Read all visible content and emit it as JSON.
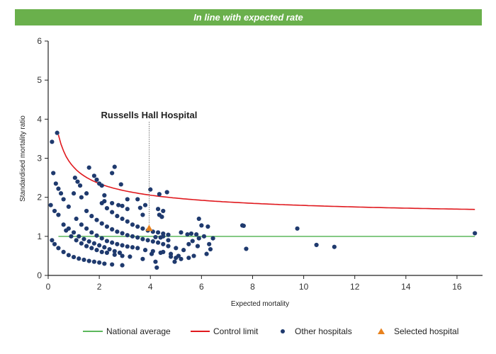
{
  "banner": {
    "text": "In line with expected rate"
  },
  "colors": {
    "banner": "#6ab04c",
    "national_average": "#5cb85c",
    "control_limit": "#e0191e",
    "other_hospitals": "#1f3a6e",
    "selected_hospital": "#e8821e"
  },
  "chart_data": {
    "type": "scatter",
    "xlabel": "Expected mortality",
    "ylabel": "Standardised mortality ratio",
    "xlim": [
      0,
      17
    ],
    "ylim": [
      0,
      6
    ],
    "xticks": [
      0,
      2,
      4,
      6,
      8,
      10,
      12,
      14,
      16
    ],
    "yticks": [
      0,
      1,
      2,
      3,
      4,
      5,
      6
    ],
    "grid": false,
    "legend_position": "bottom",
    "annotation": {
      "text": "Russells Hall Hospital",
      "x": 3.95,
      "y": 1.2
    },
    "national_average": {
      "name": "National average",
      "y": 1
    },
    "control_limit": {
      "name": "Control limit",
      "x_start": 0.4,
      "x_end": 16.7,
      "y_at_x1": 2.77,
      "y_limit": 1.34
    },
    "other_hospitals": {
      "name": "Other hospitals",
      "points": [
        [
          0.15,
          3.42
        ],
        [
          0.35,
          3.65
        ],
        [
          0.2,
          2.62
        ],
        [
          0.3,
          2.35
        ],
        [
          0.4,
          2.22
        ],
        [
          0.5,
          2.1
        ],
        [
          0.6,
          1.95
        ],
        [
          0.8,
          1.76
        ],
        [
          1.05,
          2.5
        ],
        [
          1.15,
          2.4
        ],
        [
          1.25,
          2.3
        ],
        [
          1.0,
          2.1
        ],
        [
          1.3,
          2.0
        ],
        [
          1.5,
          2.1
        ],
        [
          1.6,
          2.76
        ],
        [
          1.8,
          2.55
        ],
        [
          2.6,
          2.78
        ],
        [
          2.5,
          2.62
        ],
        [
          1.9,
          2.45
        ],
        [
          2.0,
          2.35
        ],
        [
          2.1,
          2.3
        ],
        [
          2.2,
          2.05
        ],
        [
          2.2,
          1.9
        ],
        [
          2.85,
          2.33
        ],
        [
          2.5,
          1.85
        ],
        [
          2.75,
          1.8
        ],
        [
          2.9,
          1.78
        ],
        [
          3.1,
          1.7
        ],
        [
          3.1,
          1.95
        ],
        [
          3.5,
          1.95
        ],
        [
          3.6,
          1.73
        ],
        [
          3.7,
          1.55
        ],
        [
          3.8,
          1.8
        ],
        [
          4.0,
          2.2
        ],
        [
          4.35,
          2.08
        ],
        [
          4.65,
          2.13
        ],
        [
          4.3,
          1.7
        ],
        [
          4.45,
          1.5
        ],
        [
          4.5,
          1.65
        ],
        [
          4.35,
          1.55
        ],
        [
          0.1,
          1.8
        ],
        [
          0.25,
          1.65
        ],
        [
          0.4,
          1.55
        ],
        [
          0.15,
          0.9
        ],
        [
          0.25,
          0.8
        ],
        [
          0.4,
          0.7
        ],
        [
          0.6,
          0.6
        ],
        [
          0.8,
          0.52
        ],
        [
          1.0,
          0.47
        ],
        [
          1.2,
          0.43
        ],
        [
          1.4,
          0.4
        ],
        [
          1.6,
          0.37
        ],
        [
          1.8,
          0.35
        ],
        [
          2.0,
          0.33
        ],
        [
          2.2,
          0.3
        ],
        [
          2.5,
          0.28
        ],
        [
          2.9,
          0.26
        ],
        [
          0.7,
          1.15
        ],
        [
          0.9,
          1.0
        ],
        [
          1.1,
          0.9
        ],
        [
          1.3,
          0.82
        ],
        [
          1.5,
          0.75
        ],
        [
          1.7,
          0.7
        ],
        [
          1.9,
          0.65
        ],
        [
          2.1,
          0.6
        ],
        [
          2.3,
          0.58
        ],
        [
          2.6,
          0.53
        ],
        [
          2.9,
          0.5
        ],
        [
          3.2,
          0.48
        ],
        [
          1.1,
          1.45
        ],
        [
          1.3,
          1.3
        ],
        [
          1.5,
          1.2
        ],
        [
          1.7,
          1.1
        ],
        [
          1.9,
          1.02
        ],
        [
          2.1,
          0.95
        ],
        [
          2.3,
          0.88
        ],
        [
          2.5,
          0.84
        ],
        [
          2.7,
          0.8
        ],
        [
          2.9,
          0.77
        ],
        [
          3.1,
          0.74
        ],
        [
          3.3,
          0.72
        ],
        [
          3.5,
          0.7
        ],
        [
          3.8,
          0.65
        ],
        [
          4.1,
          0.62
        ],
        [
          4.4,
          0.58
        ],
        [
          4.8,
          0.55
        ],
        [
          5.1,
          0.5
        ],
        [
          1.5,
          1.65
        ],
        [
          1.7,
          1.52
        ],
        [
          1.9,
          1.42
        ],
        [
          2.1,
          1.33
        ],
        [
          2.3,
          1.25
        ],
        [
          2.5,
          1.18
        ],
        [
          2.7,
          1.12
        ],
        [
          2.9,
          1.08
        ],
        [
          3.1,
          1.03
        ],
        [
          3.3,
          1.0
        ],
        [
          3.5,
          0.97
        ],
        [
          3.7,
          0.93
        ],
        [
          3.9,
          0.9
        ],
        [
          4.1,
          0.87
        ],
        [
          4.3,
          0.84
        ],
        [
          4.5,
          0.8
        ],
        [
          4.7,
          0.75
        ],
        [
          2.1,
          1.85
        ],
        [
          2.3,
          1.72
        ],
        [
          2.5,
          1.62
        ],
        [
          2.7,
          1.52
        ],
        [
          2.9,
          1.45
        ],
        [
          3.1,
          1.38
        ],
        [
          3.3,
          1.3
        ],
        [
          3.5,
          1.25
        ],
        [
          3.7,
          1.2
        ],
        [
          3.9,
          1.15
        ],
        [
          4.1,
          1.12
        ],
        [
          4.3,
          1.1
        ],
        [
          4.5,
          1.07
        ],
        [
          4.7,
          1.04
        ],
        [
          0.6,
          1.3
        ],
        [
          0.8,
          1.2
        ],
        [
          1.0,
          1.1
        ],
        [
          1.2,
          1.0
        ],
        [
          1.4,
          0.93
        ],
        [
          1.6,
          0.87
        ],
        [
          1.8,
          0.82
        ],
        [
          2.0,
          0.77
        ],
        [
          2.2,
          0.72
        ],
        [
          2.4,
          0.67
        ],
        [
          2.6,
          0.62
        ],
        [
          2.8,
          0.58
        ],
        [
          3.7,
          0.42
        ],
        [
          4.2,
          0.35
        ],
        [
          4.05,
          0.55
        ],
        [
          4.25,
          0.2
        ],
        [
          4.5,
          0.6
        ],
        [
          4.8,
          0.48
        ],
        [
          5.0,
          0.45
        ],
        [
          5.2,
          0.42
        ],
        [
          5.5,
          0.45
        ],
        [
          5.7,
          0.5
        ],
        [
          4.95,
          0.35
        ],
        [
          5.2,
          1.1
        ],
        [
          5.45,
          1.05
        ],
        [
          5.6,
          1.07
        ],
        [
          5.8,
          1.05
        ],
        [
          5.9,
          1.45
        ],
        [
          6.0,
          1.28
        ],
        [
          6.1,
          1.0
        ],
        [
          6.25,
          1.25
        ],
        [
          6.45,
          0.95
        ],
        [
          6.3,
          0.8
        ],
        [
          6.35,
          0.67
        ],
        [
          6.2,
          0.55
        ],
        [
          5.85,
          0.75
        ],
        [
          5.5,
          0.8
        ],
        [
          5.3,
          0.65
        ],
        [
          5.0,
          0.7
        ],
        [
          4.7,
          0.9
        ],
        [
          4.4,
          0.97
        ],
        [
          4.2,
          0.98
        ],
        [
          4.5,
          1.0
        ],
        [
          5.65,
          0.88
        ],
        [
          5.9,
          0.95
        ],
        [
          7.6,
          1.28
        ],
        [
          7.65,
          1.27
        ],
        [
          7.75,
          0.68
        ],
        [
          9.75,
          1.2
        ],
        [
          10.5,
          0.78
        ],
        [
          11.2,
          0.73
        ],
        [
          16.7,
          1.08
        ]
      ]
    },
    "selected_hospital": {
      "name": "Selected hospital",
      "x": 3.95,
      "y": 1.2
    }
  }
}
